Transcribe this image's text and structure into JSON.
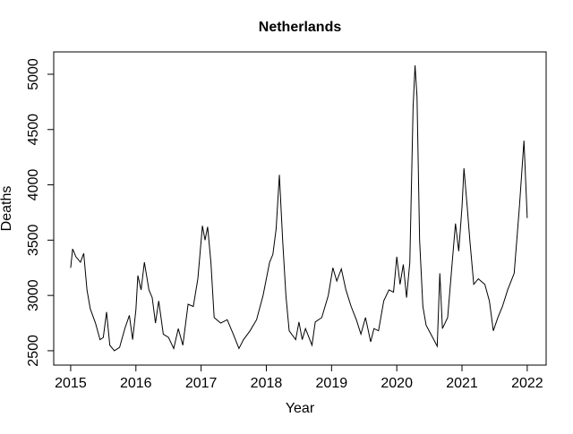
{
  "chart_data": {
    "type": "line",
    "title": "Netherlands",
    "x_label": "Year",
    "y_label": "Deaths",
    "xlim": [
      2014.74,
      2022.29
    ],
    "ylim": [
      2370,
      5202
    ],
    "xticks": [
      2015,
      2016,
      2017,
      2018,
      2019,
      2020,
      2021,
      2022
    ],
    "yticks": [
      2500,
      3000,
      3500,
      4000,
      4500,
      5000
    ],
    "color": "#000000",
    "x": [
      2015.0,
      2015.03,
      2015.08,
      2015.15,
      2015.2,
      2015.25,
      2015.3,
      2015.38,
      2015.45,
      2015.5,
      2015.55,
      2015.6,
      2015.67,
      2015.75,
      2015.83,
      2015.9,
      2015.95,
      2016.0,
      2016.03,
      2016.08,
      2016.13,
      2016.2,
      2016.25,
      2016.3,
      2016.35,
      2016.42,
      2016.5,
      2016.58,
      2016.65,
      2016.72,
      2016.8,
      2016.88,
      2016.95,
      2017.02,
      2017.06,
      2017.1,
      2017.15,
      2017.2,
      2017.3,
      2017.4,
      2017.5,
      2017.58,
      2017.65,
      2017.75,
      2017.85,
      2017.95,
      2018.05,
      2018.1,
      2018.15,
      2018.2,
      2018.25,
      2018.3,
      2018.35,
      2018.45,
      2018.5,
      2018.55,
      2018.6,
      2018.7,
      2018.75,
      2018.85,
      2018.95,
      2019.02,
      2019.08,
      2019.15,
      2019.22,
      2019.3,
      2019.38,
      2019.45,
      2019.52,
      2019.6,
      2019.65,
      2019.72,
      2019.8,
      2019.88,
      2019.95,
      2020.0,
      2020.05,
      2020.1,
      2020.15,
      2020.2,
      2020.25,
      2020.28,
      2020.31,
      2020.35,
      2020.4,
      2020.45,
      2020.55,
      2020.62,
      2020.66,
      2020.7,
      2020.78,
      2020.85,
      2020.9,
      2020.95,
      2021.0,
      2021.03,
      2021.08,
      2021.12,
      2021.18,
      2021.25,
      2021.35,
      2021.42,
      2021.48,
      2021.55,
      2021.62,
      2021.7,
      2021.8,
      2021.88,
      2021.95,
      2022.0
    ],
    "values": [
      3250,
      3420,
      3350,
      3300,
      3380,
      3050,
      2880,
      2750,
      2600,
      2620,
      2850,
      2550,
      2500,
      2530,
      2700,
      2820,
      2600,
      2870,
      3180,
      3050,
      3300,
      3050,
      2980,
      2750,
      2950,
      2650,
      2620,
      2520,
      2700,
      2550,
      2920,
      2900,
      3150,
      3630,
      3500,
      3620,
      3300,
      2800,
      2750,
      2780,
      2640,
      2520,
      2600,
      2680,
      2780,
      3000,
      3300,
      3370,
      3600,
      4090,
      3500,
      3000,
      2680,
      2600,
      2760,
      2600,
      2700,
      2550,
      2760,
      2800,
      3000,
      3250,
      3130,
      3240,
      3050,
      2900,
      2780,
      2650,
      2800,
      2580,
      2700,
      2680,
      2950,
      3050,
      3030,
      3350,
      3100,
      3280,
      2980,
      3300,
      4700,
      5080,
      4800,
      3500,
      2900,
      2730,
      2620,
      2540,
      3200,
      2700,
      2800,
      3300,
      3650,
      3400,
      3800,
      4150,
      3800,
      3500,
      3100,
      3150,
      3100,
      2950,
      2680,
      2800,
      2900,
      3050,
      3200,
      3800,
      4400,
      3700
    ]
  }
}
